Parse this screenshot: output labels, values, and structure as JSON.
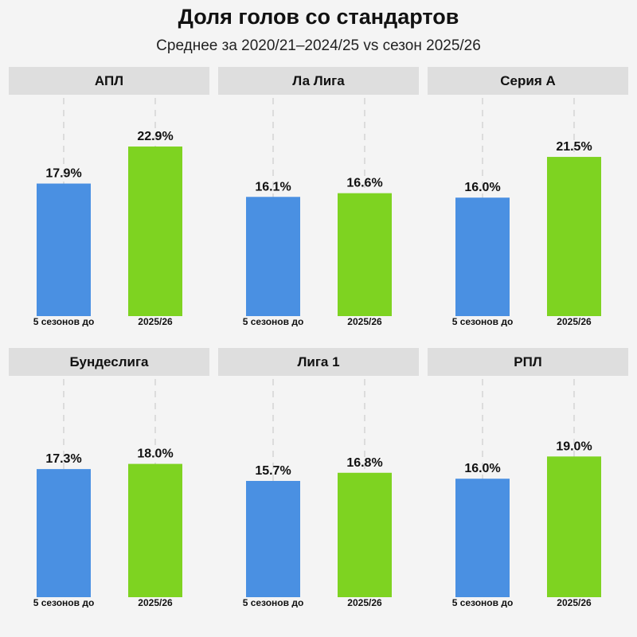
{
  "title": "Доля голов со стандартов",
  "subtitle": "Среднее за 2020/21–2024/25 vs сезон 2025/26",
  "colors": {
    "baseline": "#4a90e2",
    "current": "#7ed321",
    "header_bg": "#dedede",
    "grid": "#dcdcdc"
  },
  "chart_data": [
    {
      "type": "bar",
      "title": "АПЛ",
      "categories": [
        "5 сезонов до",
        "2025/26"
      ],
      "values": [
        17.9,
        22.9
      ],
      "labels": [
        "17.9%",
        "22.9%"
      ],
      "ylim": [
        0,
        25
      ]
    },
    {
      "type": "bar",
      "title": "Ла Лига",
      "categories": [
        "5 сезонов до",
        "2025/26"
      ],
      "values": [
        16.1,
        16.6
      ],
      "labels": [
        "16.1%",
        "16.6%"
      ],
      "ylim": [
        0,
        25
      ]
    },
    {
      "type": "bar",
      "title": "Серия А",
      "categories": [
        "5 сезонов до",
        "2025/26"
      ],
      "values": [
        16.0,
        21.5
      ],
      "labels": [
        "16.0%",
        "21.5%"
      ],
      "ylim": [
        0,
        25
      ]
    },
    {
      "type": "bar",
      "title": "Бундеслига",
      "categories": [
        "5 сезонов до",
        "2025/26"
      ],
      "values": [
        17.3,
        18.0
      ],
      "labels": [
        "17.3%",
        "18.0%"
      ],
      "ylim": [
        0,
        25
      ]
    },
    {
      "type": "bar",
      "title": "Лига 1",
      "categories": [
        "5 сезонов до",
        "2025/26"
      ],
      "values": [
        15.7,
        16.8
      ],
      "labels": [
        "15.7%",
        "16.8%"
      ],
      "ylim": [
        0,
        25
      ]
    },
    {
      "type": "bar",
      "title": "РПЛ",
      "categories": [
        "5 сезонов до",
        "2025/26"
      ],
      "values": [
        16.0,
        19.0
      ],
      "labels": [
        "16.0%",
        "19.0%"
      ],
      "ylim": [
        0,
        25
      ]
    }
  ]
}
